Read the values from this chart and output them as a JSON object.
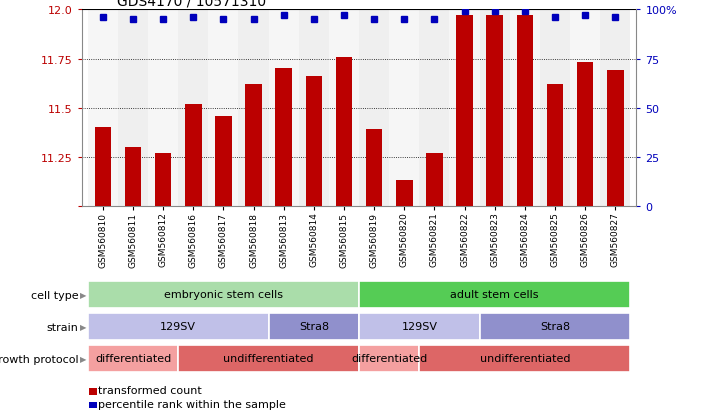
{
  "title": "GDS4170 / 10571310",
  "samples": [
    "GSM560810",
    "GSM560811",
    "GSM560812",
    "GSM560816",
    "GSM560817",
    "GSM560818",
    "GSM560813",
    "GSM560814",
    "GSM560815",
    "GSM560819",
    "GSM560820",
    "GSM560821",
    "GSM560822",
    "GSM560823",
    "GSM560824",
    "GSM560825",
    "GSM560826",
    "GSM560827"
  ],
  "bar_values": [
    11.4,
    11.3,
    11.27,
    11.52,
    11.46,
    11.62,
    11.7,
    11.66,
    11.76,
    11.39,
    11.13,
    11.27,
    11.97,
    11.97,
    11.97,
    11.62,
    11.73,
    11.69
  ],
  "percentile_values": [
    96,
    95,
    95,
    96,
    95,
    95,
    97,
    95,
    97,
    95,
    95,
    95,
    99,
    99,
    99,
    96,
    97,
    96
  ],
  "bar_color": "#bb0000",
  "percentile_color": "#0000bb",
  "ylim_left": [
    11.0,
    12.0
  ],
  "ylim_right": [
    0,
    100
  ],
  "yticks_left": [
    11.0,
    11.25,
    11.5,
    11.75,
    12.0
  ],
  "yticks_right": [
    0,
    25,
    50,
    75,
    100
  ],
  "grid_values": [
    11.25,
    11.5,
    11.75
  ],
  "cell_type_groups": [
    {
      "label": "embryonic stem cells",
      "start": 0,
      "end": 9,
      "color": "#aaddaa"
    },
    {
      "label": "adult stem cells",
      "start": 9,
      "end": 18,
      "color": "#55cc55"
    }
  ],
  "strain_groups": [
    {
      "label": "129SV",
      "start": 0,
      "end": 6,
      "color": "#c0c0e8"
    },
    {
      "label": "Stra8",
      "start": 6,
      "end": 9,
      "color": "#9090cc"
    },
    {
      "label": "129SV",
      "start": 9,
      "end": 13,
      "color": "#c0c0e8"
    },
    {
      "label": "Stra8",
      "start": 13,
      "end": 18,
      "color": "#9090cc"
    }
  ],
  "growth_groups": [
    {
      "label": "differentiated",
      "start": 0,
      "end": 3,
      "color": "#f4a0a0"
    },
    {
      "label": "undifferentiated",
      "start": 3,
      "end": 9,
      "color": "#dd6666"
    },
    {
      "label": "differentiated",
      "start": 9,
      "end": 11,
      "color": "#f4a0a0"
    },
    {
      "label": "undifferentiated",
      "start": 11,
      "end": 18,
      "color": "#dd6666"
    }
  ],
  "row_labels": [
    "cell type",
    "strain",
    "growth protocol"
  ],
  "legend_items": [
    {
      "color": "#bb0000",
      "label": "transformed count"
    },
    {
      "color": "#0000bb",
      "label": "percentile rank within the sample"
    }
  ],
  "fig_width": 7.11,
  "fig_height": 4.14,
  "dpi": 100
}
